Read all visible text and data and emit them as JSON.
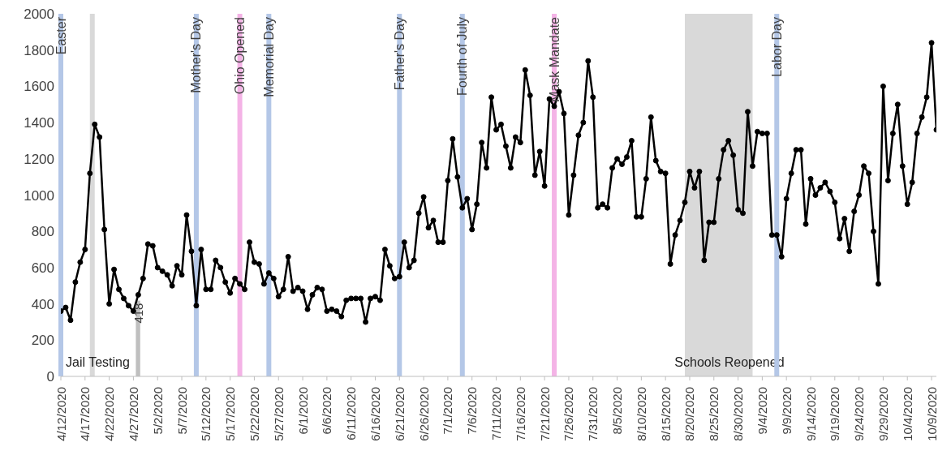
{
  "chart_data": {
    "type": "line",
    "marker": "circle",
    "grid": false,
    "x": [
      "2020-04-12",
      "2020-04-13",
      "2020-04-14",
      "2020-04-15",
      "2020-04-16",
      "2020-04-17",
      "2020-04-18",
      "2020-04-19",
      "2020-04-20",
      "2020-04-21",
      "2020-04-22",
      "2020-04-23",
      "2020-04-24",
      "2020-04-25",
      "2020-04-26",
      "2020-04-27",
      "2020-04-28",
      "2020-04-29",
      "2020-04-30",
      "2020-05-01",
      "2020-05-02",
      "2020-05-03",
      "2020-05-04",
      "2020-05-05",
      "2020-05-06",
      "2020-05-07",
      "2020-05-08",
      "2020-05-09",
      "2020-05-10",
      "2020-05-11",
      "2020-05-12",
      "2020-05-13",
      "2020-05-14",
      "2020-05-15",
      "2020-05-16",
      "2020-05-17",
      "2020-05-18",
      "2020-05-19",
      "2020-05-20",
      "2020-05-21",
      "2020-05-22",
      "2020-05-23",
      "2020-05-24",
      "2020-05-25",
      "2020-05-26",
      "2020-05-27",
      "2020-05-28",
      "2020-05-29",
      "2020-05-30",
      "2020-05-31",
      "2020-06-01",
      "2020-06-02",
      "2020-06-03",
      "2020-06-04",
      "2020-06-05",
      "2020-06-06",
      "2020-06-07",
      "2020-06-08",
      "2020-06-09",
      "2020-06-10",
      "2020-06-11",
      "2020-06-12",
      "2020-06-13",
      "2020-06-14",
      "2020-06-15",
      "2020-06-16",
      "2020-06-17",
      "2020-06-18",
      "2020-06-19",
      "2020-06-20",
      "2020-06-21",
      "2020-06-22",
      "2020-06-23",
      "2020-06-24",
      "2020-06-25",
      "2020-06-26",
      "2020-06-27",
      "2020-06-28",
      "2020-06-29",
      "2020-06-30",
      "2020-07-01",
      "2020-07-02",
      "2020-07-03",
      "2020-07-04",
      "2020-07-05",
      "2020-07-06",
      "2020-07-07",
      "2020-07-08",
      "2020-07-09",
      "2020-07-10",
      "2020-07-11",
      "2020-07-12",
      "2020-07-13",
      "2020-07-14",
      "2020-07-15",
      "2020-07-16",
      "2020-07-17",
      "2020-07-18",
      "2020-07-19",
      "2020-07-20",
      "2020-07-21",
      "2020-07-22",
      "2020-07-23",
      "2020-07-24",
      "2020-07-25",
      "2020-07-26",
      "2020-07-27",
      "2020-07-28",
      "2020-07-29",
      "2020-07-30",
      "2020-07-31",
      "2020-08-01",
      "2020-08-02",
      "2020-08-03",
      "2020-08-04",
      "2020-08-05",
      "2020-08-06",
      "2020-08-07",
      "2020-08-08",
      "2020-08-09",
      "2020-08-10",
      "2020-08-11",
      "2020-08-12",
      "2020-08-13",
      "2020-08-14",
      "2020-08-15",
      "2020-08-16",
      "2020-08-17",
      "2020-08-18",
      "2020-08-19",
      "2020-08-20",
      "2020-08-21",
      "2020-08-22",
      "2020-08-23",
      "2020-08-24",
      "2020-08-25",
      "2020-08-26",
      "2020-08-27",
      "2020-08-28",
      "2020-08-29",
      "2020-08-30",
      "2020-08-31",
      "2020-09-01",
      "2020-09-02",
      "2020-09-03",
      "2020-09-04",
      "2020-09-05",
      "2020-09-06",
      "2020-09-07",
      "2020-09-08",
      "2020-09-09",
      "2020-09-10",
      "2020-09-11",
      "2020-09-12",
      "2020-09-13",
      "2020-09-14",
      "2020-09-15",
      "2020-09-16",
      "2020-09-17",
      "2020-09-18",
      "2020-09-19",
      "2020-09-20",
      "2020-09-21",
      "2020-09-22",
      "2020-09-23",
      "2020-09-24",
      "2020-09-25",
      "2020-09-26",
      "2020-09-27",
      "2020-09-28",
      "2020-09-29",
      "2020-09-30",
      "2020-10-01",
      "2020-10-02",
      "2020-10-03",
      "2020-10-04",
      "2020-10-05",
      "2020-10-06",
      "2020-10-07",
      "2020-10-08",
      "2020-10-09",
      "2020-10-10"
    ],
    "series": [
      {
        "color": "#000000",
        "values": [
          360,
          380,
          310,
          520,
          630,
          700,
          1120,
          1390,
          1320,
          810,
          400,
          590,
          480,
          430,
          390,
          360,
          450,
          540,
          730,
          720,
          600,
          580,
          560,
          500,
          610,
          560,
          890,
          690,
          390,
          700,
          480,
          480,
          640,
          600,
          520,
          460,
          540,
          510,
          480,
          740,
          630,
          620,
          510,
          570,
          540,
          440,
          480,
          660,
          470,
          490,
          470,
          370,
          450,
          490,
          480,
          360,
          370,
          360,
          330,
          420,
          430,
          430,
          430,
          300,
          430,
          440,
          420,
          700,
          610,
          540,
          550,
          740,
          600,
          640,
          900,
          990,
          820,
          860,
          740,
          740,
          1080,
          1310,
          1100,
          930,
          980,
          810,
          950,
          1290,
          1150,
          1540,
          1360,
          1390,
          1270,
          1150,
          1320,
          1290,
          1690,
          1550,
          1110,
          1240,
          1050,
          1530,
          1490,
          1570,
          1450,
          890,
          1110,
          1330,
          1400,
          1740,
          1540,
          930,
          950,
          930,
          1150,
          1200,
          1170,
          1210,
          1300,
          880,
          880,
          1090,
          1430,
          1190,
          1130,
          1120,
          620,
          780,
          860,
          960,
          1130,
          1040,
          1130,
          640,
          850,
          850,
          1090,
          1250,
          1300,
          1220,
          920,
          900,
          1460,
          1160,
          1350,
          1340,
          1340,
          780,
          780,
          660,
          980,
          1120,
          1250,
          1250,
          840,
          1090,
          1000,
          1040,
          1070,
          1020,
          960,
          760,
          870,
          690,
          910,
          1000,
          1160,
          1120,
          800,
          510,
          1600,
          1080,
          1340,
          1500,
          1160,
          950,
          1070,
          1340,
          1430,
          1540,
          1840,
          1360
        ]
      },
      {
        "type": "bar",
        "color": "#bfbfbf",
        "x": [
          "2020-04-28"
        ],
        "values": [
          418
        ],
        "value_labels": [
          "418"
        ]
      }
    ],
    "xlim": [
      "2020-04-12",
      "2020-10-10"
    ],
    "xticks": [
      {
        "value": "2020-04-12",
        "label": "4/12/2020"
      },
      {
        "value": "2020-04-17",
        "label": "4/17/2020"
      },
      {
        "value": "2020-04-22",
        "label": "4/22/2020"
      },
      {
        "value": "2020-04-27",
        "label": "4/27/2020"
      },
      {
        "value": "2020-05-02",
        "label": "5/2/2020"
      },
      {
        "value": "2020-05-07",
        "label": "5/7/2020"
      },
      {
        "value": "2020-05-12",
        "label": "5/12/2020"
      },
      {
        "value": "2020-05-17",
        "label": "5/17/2020"
      },
      {
        "value": "2020-05-22",
        "label": "5/22/2020"
      },
      {
        "value": "2020-05-27",
        "label": "5/27/2020"
      },
      {
        "value": "2020-06-01",
        "label": "6/1/2020"
      },
      {
        "value": "2020-06-06",
        "label": "6/6/2020"
      },
      {
        "value": "2020-06-11",
        "label": "6/11/2020"
      },
      {
        "value": "2020-06-16",
        "label": "6/16/2020"
      },
      {
        "value": "2020-06-21",
        "label": "6/21/2020"
      },
      {
        "value": "2020-06-26",
        "label": "6/26/2020"
      },
      {
        "value": "2020-07-01",
        "label": "7/1/2020"
      },
      {
        "value": "2020-07-06",
        "label": "7/6/2020"
      },
      {
        "value": "2020-07-11",
        "label": "7/11/2020"
      },
      {
        "value": "2020-07-16",
        "label": "7/16/2020"
      },
      {
        "value": "2020-07-21",
        "label": "7/21/2020"
      },
      {
        "value": "2020-07-26",
        "label": "7/26/2020"
      },
      {
        "value": "2020-07-31",
        "label": "7/31/2020"
      },
      {
        "value": "2020-08-05",
        "label": "8/5/2020"
      },
      {
        "value": "2020-08-10",
        "label": "8/10/2020"
      },
      {
        "value": "2020-08-15",
        "label": "8/15/2020"
      },
      {
        "value": "2020-08-20",
        "label": "8/20/2020"
      },
      {
        "value": "2020-08-25",
        "label": "8/25/2020"
      },
      {
        "value": "2020-08-30",
        "label": "8/30/2020"
      },
      {
        "value": "2020-09-04",
        "label": "9/4/2020"
      },
      {
        "value": "2020-09-09",
        "label": "9/9/2020"
      },
      {
        "value": "2020-09-14",
        "label": "9/14/2020"
      },
      {
        "value": "2020-09-19",
        "label": "9/19/2020"
      },
      {
        "value": "2020-09-24",
        "label": "9/24/2020"
      },
      {
        "value": "2020-09-29",
        "label": "9/29/2020"
      },
      {
        "value": "2020-10-04",
        "label": "10/4/2020"
      },
      {
        "value": "2020-10-09",
        "label": "10/9/2020"
      }
    ],
    "ylim": [
      0,
      2000
    ],
    "yticks": [
      0,
      200,
      400,
      600,
      800,
      1000,
      1200,
      1400,
      1600,
      1800,
      2000
    ],
    "ref_lines": [
      {
        "axis": "x",
        "value": "2020-04-12",
        "label": "Easter",
        "color": "#b4c7e7"
      },
      {
        "axis": "x",
        "value": "2020-05-10",
        "label": "Mother's Day",
        "color": "#b4c7e7"
      },
      {
        "axis": "x",
        "value": "2020-05-19",
        "label": "Ohio Opened",
        "color": "#f4b3e6"
      },
      {
        "axis": "x",
        "value": "2020-05-25",
        "label": "Memorial Day",
        "color": "#b4c7e7"
      },
      {
        "axis": "x",
        "value": "2020-06-21",
        "label": "Father's Day",
        "color": "#b4c7e7"
      },
      {
        "axis": "x",
        "value": "2020-07-04",
        "label": "Fourth of July",
        "color": "#b4c7e7"
      },
      {
        "axis": "x",
        "value": "2020-07-23",
        "label": "Mask Mandate",
        "color": "#f4b3e6"
      },
      {
        "axis": "x",
        "value": "2020-09-07",
        "label": "Labor Day",
        "color": "#b4c7e7"
      }
    ],
    "bands": [
      {
        "axis": "x",
        "from": "2020-04-18",
        "to": "2020-04-19",
        "label": "Jail Testing",
        "color": "#d9d9d9"
      },
      {
        "axis": "x",
        "from": "2020-08-19",
        "to": "2020-09-02",
        "label": "Schools Reopened",
        "color": "#d9d9d9"
      }
    ]
  }
}
